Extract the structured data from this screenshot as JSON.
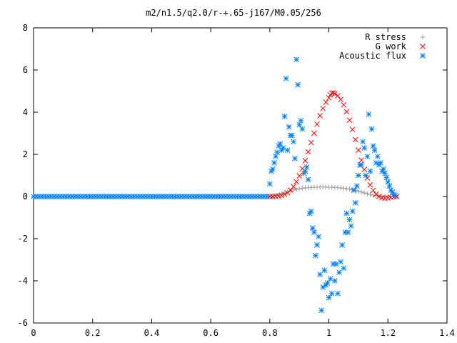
{
  "chart_data": {
    "type": "scatter",
    "title": "m2/n1.5/q2.0/r-+.65-j167/M0.05/256",
    "xlabel": "",
    "ylabel": "",
    "xlim": [
      0,
      1.4
    ],
    "ylim": [
      -6,
      8
    ],
    "x_ticks": [
      "0",
      "0.2",
      "0.4",
      "0.6",
      "0.8",
      "1",
      "1.2",
      "1.4"
    ],
    "y_ticks": [
      "-6",
      "-4",
      "-2",
      "0",
      "2",
      "4",
      "6",
      "8"
    ],
    "grid": false,
    "legend_position": "top-right",
    "series": [
      {
        "name": "R stress",
        "marker": "plus",
        "color": "#a0a0a4",
        "points": [
          [
            0.0,
            0
          ],
          [
            0.2,
            0
          ],
          [
            0.4,
            0
          ],
          [
            0.6,
            0
          ],
          [
            0.79,
            0
          ],
          [
            0.8,
            0.0
          ],
          [
            0.81,
            0.02
          ],
          [
            0.82,
            0.05
          ],
          [
            0.83,
            0.08
          ],
          [
            0.84,
            0.12
          ],
          [
            0.85,
            0.16
          ],
          [
            0.86,
            0.21
          ],
          [
            0.87,
            0.26
          ],
          [
            0.88,
            0.3
          ],
          [
            0.89,
            0.34
          ],
          [
            0.9,
            0.37
          ],
          [
            0.91,
            0.39
          ],
          [
            0.92,
            0.41
          ],
          [
            0.93,
            0.42
          ],
          [
            0.94,
            0.43
          ],
          [
            0.95,
            0.44
          ],
          [
            0.96,
            0.44
          ],
          [
            0.97,
            0.45
          ],
          [
            0.98,
            0.45
          ],
          [
            0.99,
            0.45
          ],
          [
            1.0,
            0.44
          ],
          [
            1.01,
            0.44
          ],
          [
            1.02,
            0.43
          ],
          [
            1.03,
            0.42
          ],
          [
            1.04,
            0.41
          ],
          [
            1.05,
            0.39
          ],
          [
            1.06,
            0.37
          ],
          [
            1.07,
            0.35
          ],
          [
            1.08,
            0.32
          ],
          [
            1.09,
            0.29
          ],
          [
            1.1,
            0.25
          ],
          [
            1.11,
            0.21
          ],
          [
            1.12,
            0.17
          ],
          [
            1.13,
            0.13
          ],
          [
            1.14,
            0.09
          ],
          [
            1.15,
            0.06
          ],
          [
            1.16,
            0.03
          ],
          [
            1.17,
            0.02
          ],
          [
            1.18,
            0.01
          ],
          [
            1.19,
            0.0
          ],
          [
            1.2,
            0.0
          ],
          [
            1.21,
            0.0
          ],
          [
            1.22,
            0.0
          ],
          [
            1.23,
            0.0
          ]
        ]
      },
      {
        "name": "G work",
        "marker": "cross",
        "color": "#ff0000",
        "points": [
          [
            0.8,
            0.0
          ],
          [
            0.81,
            0.0
          ],
          [
            0.82,
            0.01
          ],
          [
            0.83,
            0.02
          ],
          [
            0.84,
            0.05
          ],
          [
            0.85,
            0.1
          ],
          [
            0.86,
            0.18
          ],
          [
            0.87,
            0.3
          ],
          [
            0.88,
            0.47
          ],
          [
            0.89,
            0.7
          ],
          [
            0.9,
            0.98
          ],
          [
            0.91,
            1.32
          ],
          [
            0.92,
            1.7
          ],
          [
            0.93,
            2.12
          ],
          [
            0.94,
            2.56
          ],
          [
            0.95,
            3.0
          ],
          [
            0.96,
            3.43
          ],
          [
            0.97,
            3.83
          ],
          [
            0.98,
            4.18
          ],
          [
            0.99,
            4.47
          ],
          [
            1.0,
            4.68
          ],
          [
            1.005,
            4.82
          ],
          [
            1.01,
            4.9
          ],
          [
            1.015,
            4.92
          ],
          [
            1.02,
            4.88
          ],
          [
            1.03,
            4.78
          ],
          [
            1.04,
            4.6
          ],
          [
            1.05,
            4.35
          ],
          [
            1.06,
            4.02
          ],
          [
            1.07,
            3.62
          ],
          [
            1.08,
            3.18
          ],
          [
            1.09,
            2.7
          ],
          [
            1.1,
            2.2
          ],
          [
            1.11,
            1.72
          ],
          [
            1.12,
            1.28
          ],
          [
            1.13,
            0.88
          ],
          [
            1.14,
            0.55
          ],
          [
            1.15,
            0.29
          ],
          [
            1.16,
            0.11
          ],
          [
            1.17,
            0.0
          ],
          [
            1.18,
            -0.06
          ],
          [
            1.19,
            -0.08
          ],
          [
            1.2,
            -0.07
          ],
          [
            1.21,
            -0.04
          ],
          [
            1.22,
            -0.01
          ],
          [
            1.23,
            0.0
          ]
        ]
      },
      {
        "name": "Acoustic flux",
        "marker": "star",
        "color": "#0080ff",
        "points": [
          [
            0.0,
            0
          ],
          [
            0.01,
            0
          ],
          [
            0.02,
            0
          ],
          [
            0.03,
            0
          ],
          [
            0.04,
            0
          ],
          [
            0.05,
            0
          ],
          [
            0.06,
            0
          ],
          [
            0.07,
            0
          ],
          [
            0.08,
            0
          ],
          [
            0.09,
            0
          ],
          [
            0.1,
            0
          ],
          [
            0.11,
            0
          ],
          [
            0.12,
            0
          ],
          [
            0.13,
            0
          ],
          [
            0.14,
            0
          ],
          [
            0.15,
            0
          ],
          [
            0.16,
            0
          ],
          [
            0.17,
            0
          ],
          [
            0.18,
            0
          ],
          [
            0.19,
            0
          ],
          [
            0.2,
            0
          ],
          [
            0.21,
            0
          ],
          [
            0.22,
            0
          ],
          [
            0.23,
            0
          ],
          [
            0.24,
            0
          ],
          [
            0.25,
            0
          ],
          [
            0.26,
            0
          ],
          [
            0.27,
            0
          ],
          [
            0.28,
            0
          ],
          [
            0.29,
            0
          ],
          [
            0.3,
            0
          ],
          [
            0.31,
            0
          ],
          [
            0.32,
            0
          ],
          [
            0.33,
            0
          ],
          [
            0.34,
            0
          ],
          [
            0.35,
            0
          ],
          [
            0.36,
            0
          ],
          [
            0.37,
            0
          ],
          [
            0.38,
            0
          ],
          [
            0.39,
            0
          ],
          [
            0.4,
            0
          ],
          [
            0.41,
            0
          ],
          [
            0.42,
            0
          ],
          [
            0.43,
            0
          ],
          [
            0.44,
            0
          ],
          [
            0.45,
            0
          ],
          [
            0.46,
            0
          ],
          [
            0.47,
            0
          ],
          [
            0.48,
            0
          ],
          [
            0.49,
            0
          ],
          [
            0.5,
            0
          ],
          [
            0.51,
            0
          ],
          [
            0.52,
            0
          ],
          [
            0.53,
            0
          ],
          [
            0.54,
            0
          ],
          [
            0.55,
            0
          ],
          [
            0.56,
            0
          ],
          [
            0.57,
            0
          ],
          [
            0.58,
            0
          ],
          [
            0.59,
            0
          ],
          [
            0.6,
            0
          ],
          [
            0.61,
            0
          ],
          [
            0.62,
            0
          ],
          [
            0.63,
            0
          ],
          [
            0.64,
            0
          ],
          [
            0.65,
            0
          ],
          [
            0.66,
            0
          ],
          [
            0.67,
            0
          ],
          [
            0.68,
            0
          ],
          [
            0.69,
            0
          ],
          [
            0.7,
            0
          ],
          [
            0.71,
            0
          ],
          [
            0.72,
            0
          ],
          [
            0.73,
            0
          ],
          [
            0.74,
            0
          ],
          [
            0.75,
            0
          ],
          [
            0.76,
            0
          ],
          [
            0.77,
            0
          ],
          [
            0.78,
            0
          ],
          [
            0.79,
            0
          ],
          [
            0.8,
            0.6
          ],
          [
            0.805,
            1.2
          ],
          [
            0.81,
            1.3
          ],
          [
            0.815,
            1.6
          ],
          [
            0.82,
            1.9
          ],
          [
            0.825,
            2.1
          ],
          [
            0.83,
            2.4
          ],
          [
            0.835,
            2.5
          ],
          [
            0.84,
            2.2
          ],
          [
            0.845,
            2.3
          ],
          [
            0.85,
            3.8
          ],
          [
            0.855,
            5.6
          ],
          [
            0.86,
            2.2
          ],
          [
            0.865,
            3.3
          ],
          [
            0.87,
            2.9
          ],
          [
            0.875,
            2.9
          ],
          [
            0.88,
            2.6
          ],
          [
            0.885,
            1.8
          ],
          [
            0.89,
            6.5
          ],
          [
            0.895,
            5.3
          ],
          [
            0.9,
            3.4
          ],
          [
            0.905,
            3.6
          ],
          [
            0.91,
            3.2
          ],
          [
            0.915,
            1.1
          ],
          [
            0.92,
            1.2
          ],
          [
            0.925,
            1.4
          ],
          [
            0.93,
            0.8
          ],
          [
            0.935,
            -0.8
          ],
          [
            0.94,
            -0.7
          ],
          [
            0.945,
            -1.5
          ],
          [
            0.95,
            -1.7
          ],
          [
            0.955,
            -2.8
          ],
          [
            0.96,
            -2.3
          ],
          [
            0.965,
            -1.9
          ],
          [
            0.97,
            -3.7
          ],
          [
            0.975,
            -5.4
          ],
          [
            0.98,
            -4.3
          ],
          [
            0.985,
            -3.5
          ],
          [
            0.99,
            -4.2
          ],
          [
            0.995,
            -4.1
          ],
          [
            1.0,
            -4.8
          ],
          [
            1.005,
            -3.9
          ],
          [
            1.01,
            -4.6
          ],
          [
            1.015,
            -3.2
          ],
          [
            1.02,
            -4.0
          ],
          [
            1.025,
            -3.2
          ],
          [
            1.03,
            -4.6
          ],
          [
            1.035,
            -3.6
          ],
          [
            1.04,
            -3.1
          ],
          [
            1.045,
            -2.3
          ],
          [
            1.05,
            -3.4
          ],
          [
            1.055,
            -1.7
          ],
          [
            1.06,
            -0.8
          ],
          [
            1.065,
            -1.7
          ],
          [
            1.07,
            -1.1
          ],
          [
            1.075,
            -1.4
          ],
          [
            1.08,
            -0.7
          ],
          [
            1.085,
            0.3
          ],
          [
            1.09,
            -0.3
          ],
          [
            1.095,
            0.5
          ],
          [
            1.1,
            1.0
          ],
          [
            1.105,
            1.5
          ],
          [
            1.11,
            1.5
          ],
          [
            1.115,
            2.6
          ],
          [
            1.12,
            2.3
          ],
          [
            1.125,
            1.0
          ],
          [
            1.13,
            1.9
          ],
          [
            1.135,
            3.9
          ],
          [
            1.14,
            1.2
          ],
          [
            1.145,
            3.2
          ],
          [
            1.15,
            2.4
          ],
          [
            1.155,
            2.2
          ],
          [
            1.16,
            1.6
          ],
          [
            1.165,
            1.9
          ],
          [
            1.17,
            1.5
          ],
          [
            1.175,
            1.6
          ],
          [
            1.18,
            1.2
          ],
          [
            1.185,
            1.3
          ],
          [
            1.19,
            1.1
          ],
          [
            1.195,
            0.9
          ],
          [
            1.2,
            0.7
          ],
          [
            1.205,
            0.5
          ],
          [
            1.21,
            0.3
          ],
          [
            1.215,
            0.2
          ],
          [
            1.22,
            0.1
          ],
          [
            1.225,
            0.05
          ]
        ]
      }
    ]
  }
}
